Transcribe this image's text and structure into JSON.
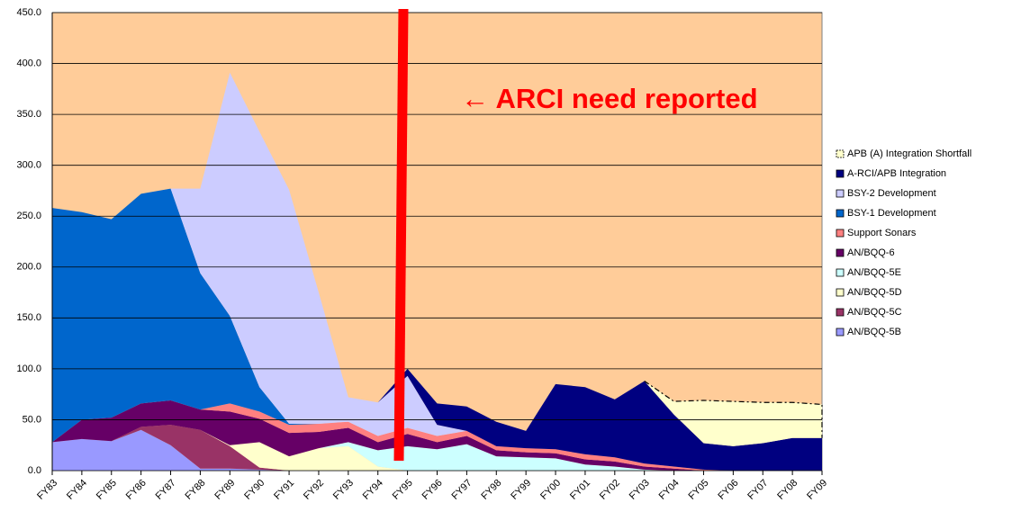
{
  "chart_data": {
    "type": "stacked_area",
    "annotation": "← ARCI need reported",
    "categories": [
      "FY83",
      "FY84",
      "FY85",
      "FY86",
      "FY87",
      "FY88",
      "FY89",
      "FY90",
      "FY91",
      "FY92",
      "FY93",
      "FY94",
      "FY95",
      "FY96",
      "FY97",
      "FY98",
      "FY99",
      "FY00",
      "FY01",
      "FY02",
      "FY03",
      "FY04",
      "FY05",
      "FY06",
      "FY07",
      "FY08",
      "FY09"
    ],
    "ylim": [
      0,
      450
    ],
    "yticks": [
      {
        "value": 0,
        "label": "0.0"
      },
      {
        "value": 50,
        "label": "50.0"
      },
      {
        "value": 100,
        "label": "100.0"
      },
      {
        "value": 150,
        "label": "150.0"
      },
      {
        "value": 200,
        "label": "200.0"
      },
      {
        "value": 250,
        "label": "250.0"
      },
      {
        "value": 300,
        "label": "300.0"
      },
      {
        "value": 350,
        "label": "350.0"
      },
      {
        "value": 400,
        "label": "400.0"
      },
      {
        "value": 450,
        "label": "450.0"
      }
    ],
    "grid": true,
    "plot_background": "#ffcc99",
    "series": [
      {
        "name": "AN/BQQ-5B",
        "color": "#9999ff",
        "values": [
          28,
          31,
          29,
          40,
          25,
          2,
          2,
          1,
          0,
          0,
          0,
          0,
          0,
          0,
          0,
          0,
          0,
          0,
          0,
          0,
          0,
          0,
          0,
          0,
          0,
          0,
          0
        ]
      },
      {
        "name": "AN/BQQ-5C",
        "color": "#993366",
        "values": [
          0,
          0,
          0,
          3,
          20,
          38,
          22,
          2,
          0,
          0,
          0,
          0,
          0,
          0,
          0,
          0,
          0,
          0,
          0,
          0,
          0,
          0,
          0,
          0,
          0,
          0,
          0
        ]
      },
      {
        "name": "AN/BQQ-5D",
        "color": "#ffffcc",
        "values": [
          0,
          0,
          0,
          0,
          0,
          0,
          1,
          25,
          14,
          22,
          24,
          4,
          0,
          0,
          0,
          0,
          0,
          0,
          0,
          0,
          0,
          0,
          0,
          0,
          0,
          0,
          0
        ]
      },
      {
        "name": "AN/BQQ-5E",
        "color": "#ccffff",
        "values": [
          0,
          0,
          0,
          0,
          0,
          0,
          0,
          0,
          0,
          0,
          4,
          16,
          24,
          21,
          26,
          14,
          13,
          12,
          6,
          4,
          1,
          0,
          0,
          0,
          0,
          0,
          0
        ]
      },
      {
        "name": "AN/BQQ-6",
        "color": "#660066",
        "values": [
          0,
          19,
          23,
          23,
          24,
          20,
          33,
          23,
          23,
          16,
          14,
          8,
          12,
          7,
          8,
          6,
          5,
          5,
          5,
          5,
          3,
          2,
          0,
          0,
          0,
          0,
          0
        ]
      },
      {
        "name": "Support Sonars",
        "color": "#ff8080",
        "values": [
          0,
          0,
          0,
          0,
          0,
          0,
          8,
          7,
          8,
          8,
          6,
          6,
          6,
          6,
          5,
          4,
          4,
          4,
          5,
          4,
          3,
          2,
          1,
          0,
          0,
          0,
          0
        ]
      },
      {
        "name": "BSY-1 Development",
        "color": "#0066cc",
        "values": [
          230,
          204,
          195,
          206,
          208,
          134,
          86,
          24,
          1,
          0,
          0,
          0,
          0,
          0,
          0,
          0,
          0,
          0,
          0,
          0,
          0,
          0,
          0,
          0,
          0,
          0,
          0
        ]
      },
      {
        "name": "BSY-2 Development",
        "color": "#ccccff",
        "values": [
          0,
          0,
          0,
          0,
          0,
          83,
          239,
          251,
          230,
          129,
          24,
          33,
          51,
          11,
          0,
          0,
          0,
          0,
          0,
          0,
          0,
          0,
          0,
          0,
          0,
          0,
          0
        ]
      },
      {
        "name": "A-RCI/APB Integration",
        "color": "#000080",
        "values": [
          0,
          0,
          0,
          0,
          0,
          0,
          0,
          0,
          0,
          0,
          0,
          0,
          7,
          21,
          24,
          24,
          17,
          64,
          66,
          57,
          81,
          51,
          26,
          24,
          27,
          32,
          32
        ]
      },
      {
        "name": "APB (A) Integration Shortfall",
        "color": "#ffffcc",
        "dashed": true,
        "values": [
          0,
          0,
          0,
          0,
          0,
          0,
          0,
          0,
          0,
          0,
          0,
          0,
          0,
          0,
          0,
          0,
          0,
          0,
          0,
          0,
          0,
          13,
          42,
          44,
          40,
          35,
          33
        ]
      }
    ]
  }
}
